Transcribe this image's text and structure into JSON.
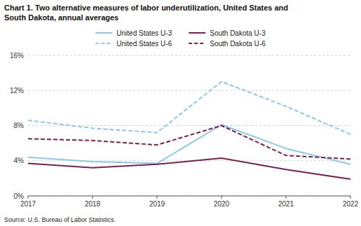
{
  "chart_data": {
    "type": "line",
    "title": "Chart 1. Two alternative measures of labor underutilization, United States and\nSouth Dakota, annual averages",
    "source": "Source: U.S. Bureau of Labor Statistics.",
    "x": [
      2017,
      2018,
      2019,
      2020,
      2021,
      2022
    ],
    "series": [
      {
        "name": "United States U-3",
        "color": "#8DC8E8",
        "line_style": "solid",
        "values": [
          4.4,
          3.9,
          3.7,
          8.1,
          5.4,
          3.6
        ]
      },
      {
        "name": "United States U-6",
        "color": "#8DC8E8",
        "line_style": "dashed",
        "values": [
          8.6,
          7.7,
          7.2,
          13.0,
          10.2,
          7.0
        ]
      },
      {
        "name": "South Dakota U-3",
        "color": "#7B2050",
        "line_style": "solid",
        "values": [
          3.7,
          3.2,
          3.6,
          4.3,
          3.0,
          1.9
        ]
      },
      {
        "name": "South Dakota U-6",
        "color": "#7B2050",
        "line_style": "dashed",
        "values": [
          6.5,
          6.3,
          5.8,
          8.0,
          4.6,
          4.2
        ]
      }
    ],
    "xlim": [
      2017,
      2022
    ],
    "xticks": [
      2017,
      2018,
      2019,
      2020,
      2021,
      2022
    ],
    "ylim": [
      0,
      16
    ],
    "yticks": [
      {
        "value": 0,
        "label": "0%"
      },
      {
        "value": 4,
        "label": "4%"
      },
      {
        "value": 8,
        "label": "8%"
      },
      {
        "value": 12,
        "label": "12%"
      },
      {
        "value": 16,
        "label": "16%"
      }
    ],
    "grid": true,
    "legend": "top"
  }
}
